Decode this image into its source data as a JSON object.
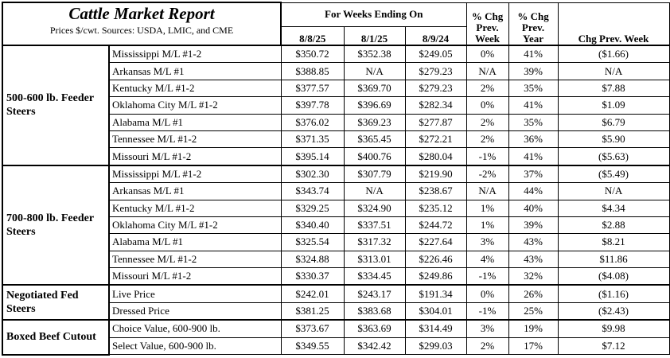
{
  "header": {
    "title": "Cattle Market Report",
    "subtitle": "Prices $/cwt. Sources: USDA, LMIC, and CME",
    "weeks_label": "For Weeks Ending On",
    "dates": [
      "8/8/25",
      "8/1/25",
      "8/9/24"
    ],
    "pct_week": "% Chg Prev. Week",
    "pct_year": "% Chg Prev. Year",
    "chg_week": "Chg Prev. Week"
  },
  "groups": [
    {
      "label": "500-600 lb. Feeder Steers",
      "rows": [
        [
          "Mississippi M/L #1-2",
          "$350.72",
          "$352.38",
          "$249.05",
          "0%",
          "41%",
          "($1.66)"
        ],
        [
          "Arkansas M/L #1",
          "$388.85",
          "N/A",
          "$279.23",
          "N/A",
          "39%",
          "N/A"
        ],
        [
          "Kentucky M/L #1-2",
          "$377.57",
          "$369.70",
          "$279.23",
          "2%",
          "35%",
          "$7.88"
        ],
        [
          "Oklahoma City M/L #1-2",
          "$397.78",
          "$396.69",
          "$282.34",
          "0%",
          "41%",
          "$1.09"
        ],
        [
          "Alabama M/L #1",
          "$376.02",
          "$369.23",
          "$277.87",
          "2%",
          "35%",
          "$6.79"
        ],
        [
          "Tennessee M/L #1-2",
          "$371.35",
          "$365.45",
          "$272.21",
          "2%",
          "36%",
          "$5.90"
        ],
        [
          "Missouri M/L #1-2",
          "$395.14",
          "$400.76",
          "$280.04",
          "-1%",
          "41%",
          "($5.63)"
        ]
      ]
    },
    {
      "label": "700-800 lb. Feeder Steers",
      "rows": [
        [
          "Mississippi M/L #1-2",
          "$302.30",
          "$307.79",
          "$219.90",
          "-2%",
          "37%",
          "($5.49)"
        ],
        [
          "Arkansas M/L #1",
          "$343.74",
          "N/A",
          "$238.67",
          "N/A",
          "44%",
          "N/A"
        ],
        [
          "Kentucky M/L #1-2",
          "$329.25",
          "$324.90",
          "$235.12",
          "1%",
          "40%",
          "$4.34"
        ],
        [
          "Oklahoma City M/L #1-2",
          "$340.40",
          "$337.51",
          "$244.72",
          "1%",
          "39%",
          "$2.88"
        ],
        [
          "Alabama M/L #1",
          "$325.54",
          "$317.32",
          "$227.64",
          "3%",
          "43%",
          "$8.21"
        ],
        [
          "Tennessee M/L #1-2",
          "$324.88",
          "$313.01",
          "$226.46",
          "4%",
          "43%",
          "$11.86"
        ],
        [
          "Missouri M/L #1-2",
          "$330.37",
          "$334.45",
          "$249.86",
          "-1%",
          "32%",
          "($4.08)"
        ]
      ]
    },
    {
      "label": "Negotiated Fed Steers",
      "rows": [
        [
          "Live Price",
          "$242.01",
          "$243.17",
          "$191.34",
          "0%",
          "26%",
          "($1.16)"
        ],
        [
          "Dressed Price",
          "$381.25",
          "$383.68",
          "$304.01",
          "-1%",
          "25%",
          "($2.43)"
        ]
      ]
    },
    {
      "label": "Boxed Beef Cutout",
      "rows": [
        [
          "Choice Value, 600-900 lb.",
          "$373.67",
          "$363.69",
          "$314.49",
          "3%",
          "19%",
          "$9.98"
        ],
        [
          "Select Value, 600-900 lb.",
          "$349.55",
          "$342.42",
          "$299.03",
          "2%",
          "17%",
          "$7.12"
        ]
      ]
    }
  ]
}
